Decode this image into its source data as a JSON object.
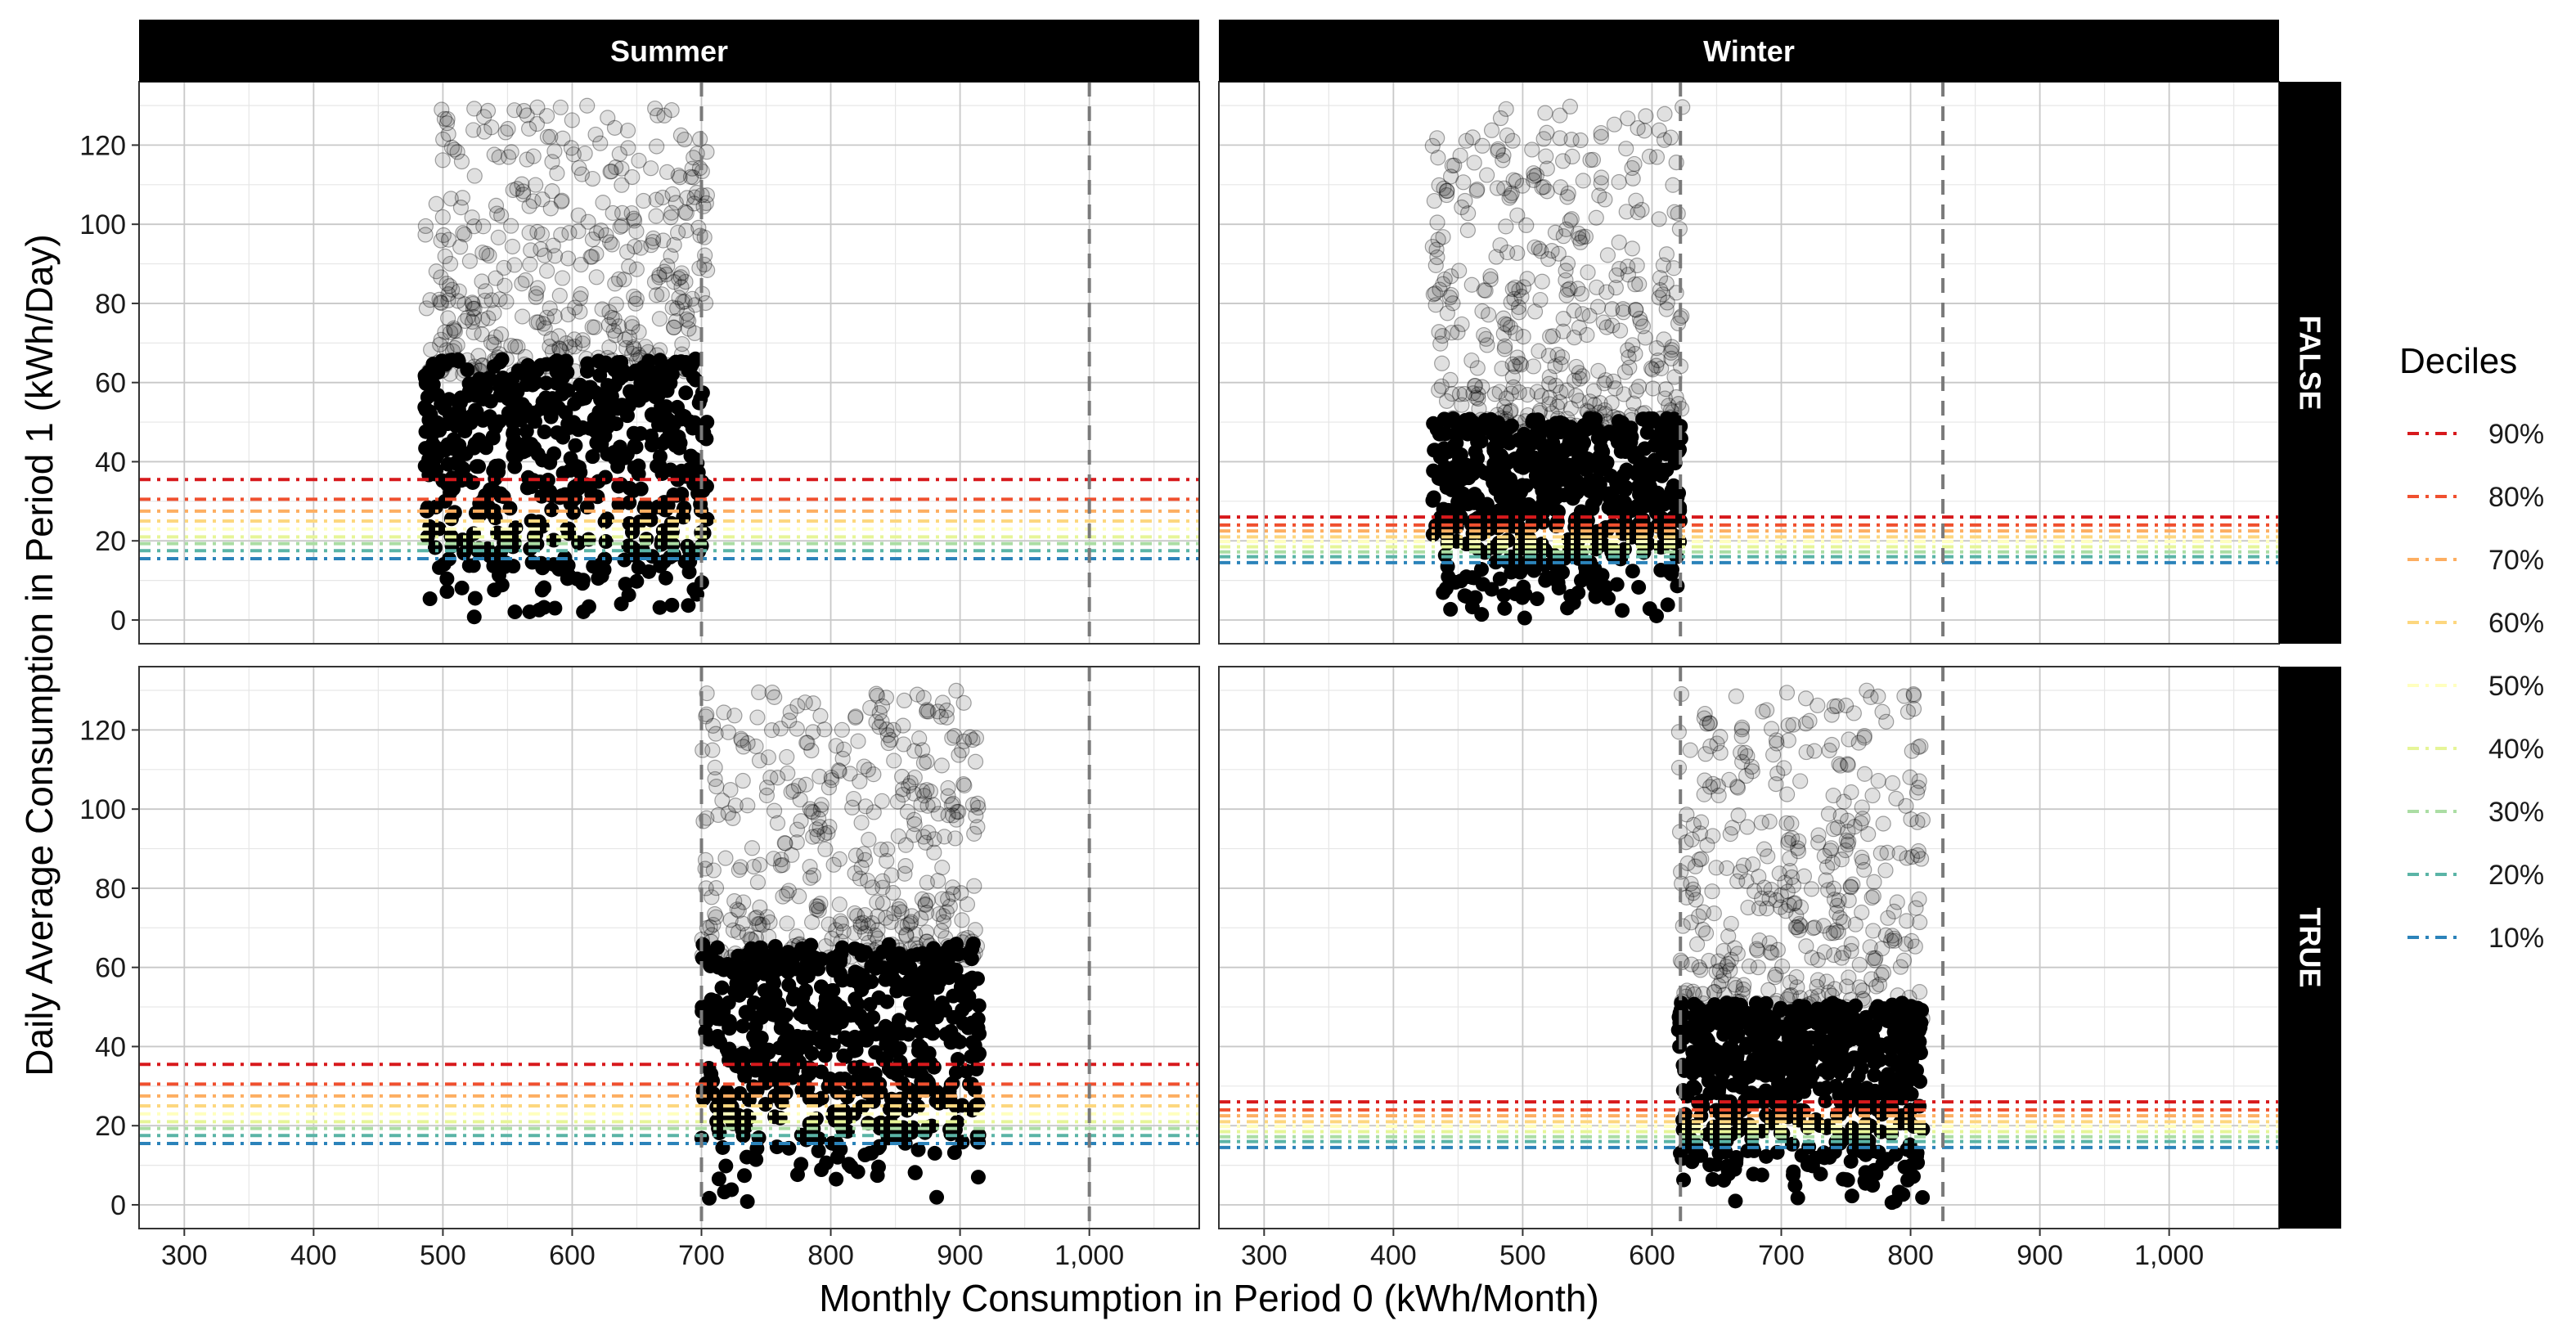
{
  "chart_data": {
    "type": "scatter",
    "xlabel": "Monthly Consumption in Period 0 (kWh/Month)",
    "ylabel": "Daily Average Consumption in Period 1 (kWh/Day)",
    "xlim": [
      265,
      1085
    ],
    "ylim": [
      -6,
      136
    ],
    "x_ticks": [
      300,
      400,
      500,
      600,
      700,
      800,
      900,
      1000
    ],
    "x_tick_labels": [
      "300",
      "400",
      "500",
      "600",
      "700",
      "800",
      "900",
      "1,000"
    ],
    "y_ticks": [
      0,
      20,
      40,
      60,
      80,
      100,
      120
    ],
    "y_tick_labels": [
      "0",
      "20",
      "40",
      "60",
      "80",
      "100",
      "120"
    ],
    "grid": true,
    "facet_columns": [
      "Summer",
      "Winter"
    ],
    "facet_rows": [
      "FALSE",
      "TRUE"
    ],
    "legend": {
      "title": "Deciles",
      "placement": "right",
      "entries": [
        {
          "label": "90%",
          "color": "#D7191C"
        },
        {
          "label": "80%",
          "color": "#F0502F"
        },
        {
          "label": "70%",
          "color": "#FDAE61"
        },
        {
          "label": "60%",
          "color": "#FDD77F"
        },
        {
          "label": "50%",
          "color": "#FFFFBF"
        },
        {
          "label": "40%",
          "color": "#E6F598"
        },
        {
          "label": "30%",
          "color": "#ABDDA4"
        },
        {
          "label": "20%",
          "color": "#5AB4A6"
        },
        {
          "label": "10%",
          "color": "#2B83BA"
        }
      ]
    },
    "decile_values": {
      "Summer": [
        35.5,
        30.5,
        27.5,
        25,
        23,
        21,
        19.3,
        17.5,
        15.5
      ],
      "Winter": [
        26,
        24,
        22.5,
        21,
        19.8,
        18.5,
        17.2,
        16,
        14.5
      ]
    },
    "panels": [
      {
        "column": "Summer",
        "row": "FALSE",
        "vlines": [
          700,
          1000
        ],
        "points_x_range": [
          485,
          705
        ],
        "points_dense_max_y": 70,
        "points_max_y": 130
      },
      {
        "column": "Winter",
        "row": "FALSE",
        "vlines": [
          622,
          825
        ],
        "points_x_range": [
          430,
          624
        ],
        "points_dense_max_y": 55,
        "points_max_y": 130
      },
      {
        "column": "Summer",
        "row": "TRUE",
        "vlines": [
          700,
          1000
        ],
        "points_x_range": [
          700,
          915
        ],
        "points_dense_max_y": 70,
        "points_max_y": 130
      },
      {
        "column": "Winter",
        "row": "TRUE",
        "vlines": [
          622,
          825
        ],
        "points_x_range": [
          620,
          810
        ],
        "points_dense_max_y": 55,
        "points_max_y": 130
      }
    ]
  }
}
